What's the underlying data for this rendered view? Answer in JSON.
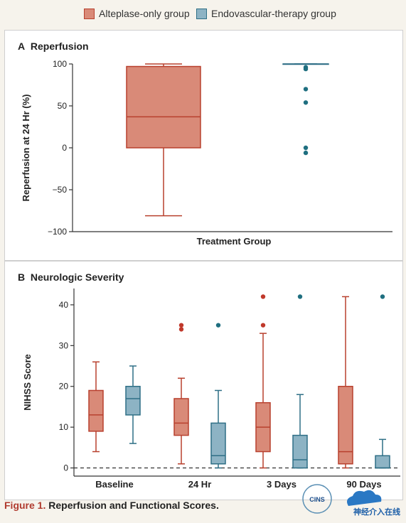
{
  "legend": {
    "items": [
      {
        "label": "Alteplase-only group",
        "fill": "#d98a78",
        "stroke": "#b8402e"
      },
      {
        "label": "Endovascular-therapy group",
        "fill": "#8db3c4",
        "stroke": "#2e6f86"
      }
    ]
  },
  "panel_a": {
    "letter": "A",
    "title": "Reperfusion"
  },
  "panel_b": {
    "letter": "B",
    "title": "Neurologic Severity"
  },
  "caption": {
    "label": "Figure 1.",
    "text": "Reperfusion and Functional Scores."
  },
  "watermark": {
    "badge": "CINS",
    "text": "神经介入在线"
  },
  "colors": {
    "alteplase_fill": "#d98a78",
    "alteplase_stroke": "#b8402e",
    "endo_fill": "#8db3c4",
    "endo_stroke": "#2e6f86",
    "outlier_red": "#c0392b",
    "outlier_blue": "#1f6f80"
  },
  "chart_data": [
    {
      "type": "box",
      "title": "Reperfusion",
      "xlabel": "Treatment Group",
      "ylabel": "Reperfusion at 24 Hr (%)",
      "ylim": [
        -100,
        100
      ],
      "yticks": [
        100,
        50,
        0,
        -50,
        -100
      ],
      "series": [
        {
          "name": "Alteplase-only group",
          "min": -81,
          "q1": 0,
          "median": 37,
          "q3": 97,
          "max": 100,
          "outliers": []
        },
        {
          "name": "Endovascular-therapy group",
          "min": 100,
          "q1": 100,
          "median": 100,
          "q3": 100,
          "max": 100,
          "outliers": [
            96,
            94,
            70,
            54,
            0,
            -6
          ]
        }
      ]
    },
    {
      "type": "box",
      "title": "Neurologic Severity",
      "xlabel": "",
      "ylabel": "NIHSS Score",
      "ylim": [
        -2,
        44
      ],
      "yticks": [
        0,
        10,
        20,
        30,
        40
      ],
      "reference_line": 0,
      "categories": [
        "Baseline",
        "24 Hr",
        "3 Days",
        "90 Days"
      ],
      "series": [
        {
          "name": "Alteplase-only group",
          "boxes": [
            {
              "min": 4,
              "q1": 9,
              "median": 13,
              "q3": 19,
              "max": 26,
              "outliers": []
            },
            {
              "min": 1,
              "q1": 8,
              "median": 11,
              "q3": 17,
              "max": 22,
              "outliers": [
                35,
                34
              ]
            },
            {
              "min": 0,
              "q1": 4,
              "median": 10,
              "q3": 16,
              "max": 33,
              "outliers": [
                42,
                35
              ]
            },
            {
              "min": 0,
              "q1": 1,
              "median": 4,
              "q3": 20,
              "max": 42,
              "outliers": []
            }
          ]
        },
        {
          "name": "Endovascular-therapy group",
          "boxes": [
            {
              "min": 6,
              "q1": 13,
              "median": 17,
              "q3": 20,
              "max": 25,
              "outliers": []
            },
            {
              "min": 0,
              "q1": 1,
              "median": 3,
              "q3": 11,
              "max": 19,
              "outliers": [
                35
              ]
            },
            {
              "min": 0,
              "q1": 0,
              "median": 2,
              "q3": 8,
              "max": 18,
              "outliers": [
                42
              ]
            },
            {
              "min": 0,
              "q1": 0,
              "median": 0,
              "q3": 3,
              "max": 7,
              "outliers": [
                42
              ]
            }
          ]
        }
      ]
    }
  ]
}
